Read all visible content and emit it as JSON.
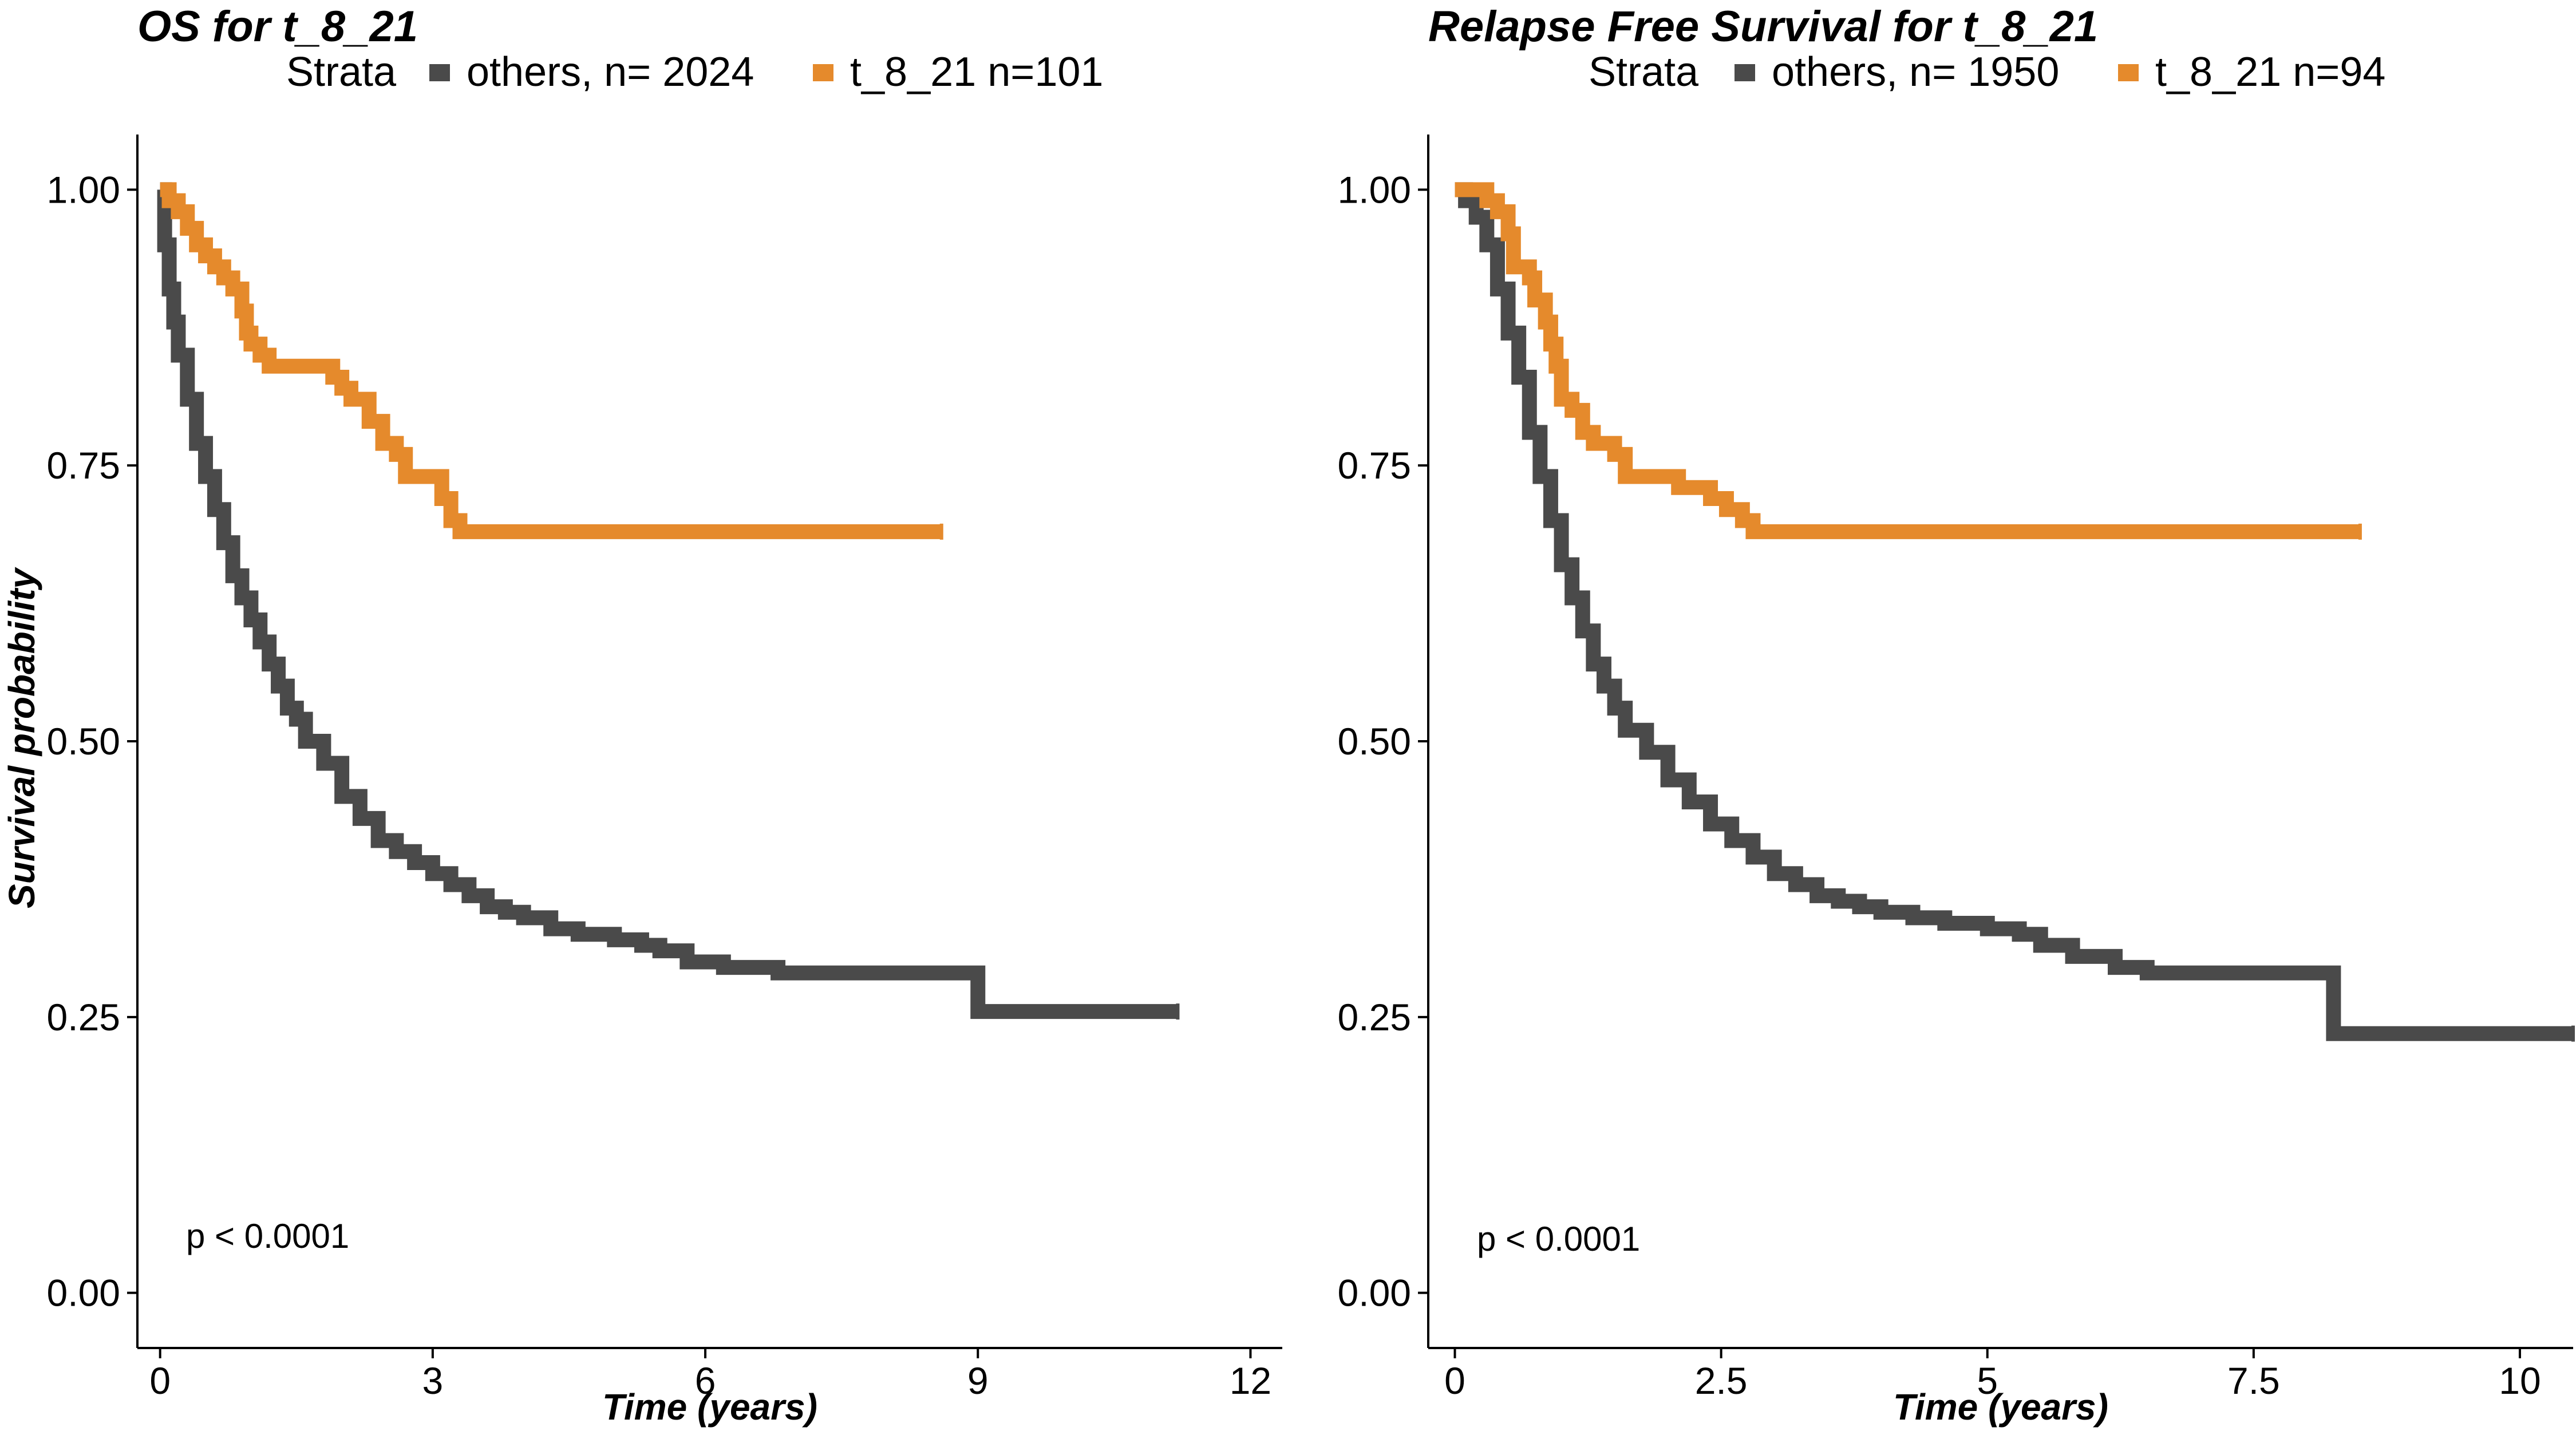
{
  "colors": {
    "others": "#4a4a4a",
    "t_8_21": "#e58a2c"
  },
  "chart_data": [
    {
      "type": "line",
      "title": "OS  for  t_8_21",
      "legend_title": "Strata",
      "legend_position": "top",
      "xlabel": "Time (years)",
      "ylabel": "Survival probability",
      "xlim": [
        0,
        12
      ],
      "ylim": [
        0,
        1
      ],
      "x_ticks": [
        "0",
        "3",
        "6",
        "9",
        "12"
      ],
      "x_tick_values": [
        0,
        3,
        6,
        9,
        12
      ],
      "y_ticks": [
        "0.00",
        "0.25",
        "0.50",
        "0.75",
        "1.00"
      ],
      "y_tick_values": [
        0,
        0.25,
        0.5,
        0.75,
        1.0
      ],
      "annotation": "p < 0.0001",
      "grid": false,
      "series": [
        {
          "name": "others, n= 2024",
          "color_key": "others",
          "points": [
            [
              0,
              1.0
            ],
            [
              0.05,
              0.95
            ],
            [
              0.1,
              0.91
            ],
            [
              0.15,
              0.88
            ],
            [
              0.2,
              0.85
            ],
            [
              0.3,
              0.81
            ],
            [
              0.4,
              0.77
            ],
            [
              0.5,
              0.74
            ],
            [
              0.6,
              0.71
            ],
            [
              0.7,
              0.68
            ],
            [
              0.8,
              0.65
            ],
            [
              0.9,
              0.63
            ],
            [
              1.0,
              0.61
            ],
            [
              1.1,
              0.59
            ],
            [
              1.2,
              0.57
            ],
            [
              1.3,
              0.55
            ],
            [
              1.4,
              0.53
            ],
            [
              1.5,
              0.52
            ],
            [
              1.6,
              0.5
            ],
            [
              1.8,
              0.48
            ],
            [
              2.0,
              0.45
            ],
            [
              2.2,
              0.43
            ],
            [
              2.4,
              0.41
            ],
            [
              2.6,
              0.4
            ],
            [
              2.8,
              0.39
            ],
            [
              3.0,
              0.38
            ],
            [
              3.2,
              0.37
            ],
            [
              3.4,
              0.36
            ],
            [
              3.6,
              0.35
            ],
            [
              3.8,
              0.345
            ],
            [
              4.0,
              0.34
            ],
            [
              4.3,
              0.33
            ],
            [
              4.6,
              0.325
            ],
            [
              5.0,
              0.32
            ],
            [
              5.3,
              0.315
            ],
            [
              5.5,
              0.31
            ],
            [
              5.8,
              0.3
            ],
            [
              6.2,
              0.295
            ],
            [
              6.8,
              0.29
            ],
            [
              7.5,
              0.29
            ],
            [
              8.99,
              0.29
            ],
            [
              9.0,
              0.255
            ],
            [
              11.2,
              0.255
            ]
          ]
        },
        {
          "name": "t_8_21 n=101",
          "color_key": "t_8_21",
          "points": [
            [
              0,
              1.0
            ],
            [
              0.1,
              0.99
            ],
            [
              0.2,
              0.98
            ],
            [
              0.3,
              0.965
            ],
            [
              0.4,
              0.95
            ],
            [
              0.5,
              0.94
            ],
            [
              0.6,
              0.93
            ],
            [
              0.7,
              0.92
            ],
            [
              0.8,
              0.91
            ],
            [
              0.9,
              0.89
            ],
            [
              0.95,
              0.87
            ],
            [
              1.0,
              0.86
            ],
            [
              1.1,
              0.85
            ],
            [
              1.2,
              0.84
            ],
            [
              1.8,
              0.84
            ],
            [
              1.9,
              0.83
            ],
            [
              2.0,
              0.82
            ],
            [
              2.1,
              0.81
            ],
            [
              2.3,
              0.79
            ],
            [
              2.45,
              0.77
            ],
            [
              2.6,
              0.76
            ],
            [
              2.7,
              0.74
            ],
            [
              3.0,
              0.74
            ],
            [
              3.1,
              0.72
            ],
            [
              3.2,
              0.7
            ],
            [
              3.3,
              0.69
            ],
            [
              8.6,
              0.69
            ]
          ]
        }
      ]
    },
    {
      "type": "line",
      "title": "Relapse Free Survival for  t_8_21",
      "legend_title": "Strata",
      "legend_position": "top",
      "xlabel": "Time (years)",
      "ylabel": "",
      "xlim": [
        0,
        10.5
      ],
      "ylim": [
        0,
        1
      ],
      "x_ticks": [
        "0",
        "2.5",
        "5",
        "7.5",
        "10"
      ],
      "x_tick_values": [
        0,
        2.5,
        5,
        7.5,
        10
      ],
      "y_ticks": [
        "0.00",
        "0.25",
        "0.50",
        "0.75",
        "1.00"
      ],
      "y_tick_values": [
        0,
        0.25,
        0.5,
        0.75,
        1.0
      ],
      "annotation": "p < 0.0001",
      "grid": false,
      "series": [
        {
          "name": "others, n= 1950",
          "color_key": "others",
          "points": [
            [
              0,
              1.0
            ],
            [
              0.1,
              0.99
            ],
            [
              0.2,
              0.975
            ],
            [
              0.3,
              0.95
            ],
            [
              0.4,
              0.91
            ],
            [
              0.5,
              0.87
            ],
            [
              0.6,
              0.83
            ],
            [
              0.7,
              0.78
            ],
            [
              0.8,
              0.74
            ],
            [
              0.9,
              0.7
            ],
            [
              1.0,
              0.66
            ],
            [
              1.1,
              0.63
            ],
            [
              1.2,
              0.6
            ],
            [
              1.3,
              0.57
            ],
            [
              1.4,
              0.55
            ],
            [
              1.5,
              0.53
            ],
            [
              1.6,
              0.51
            ],
            [
              1.8,
              0.49
            ],
            [
              2.0,
              0.465
            ],
            [
              2.2,
              0.445
            ],
            [
              2.4,
              0.425
            ],
            [
              2.6,
              0.41
            ],
            [
              2.8,
              0.395
            ],
            [
              3.0,
              0.38
            ],
            [
              3.2,
              0.37
            ],
            [
              3.4,
              0.36
            ],
            [
              3.6,
              0.355
            ],
            [
              3.8,
              0.35
            ],
            [
              4.0,
              0.345
            ],
            [
              4.3,
              0.34
            ],
            [
              4.6,
              0.335
            ],
            [
              5.0,
              0.33
            ],
            [
              5.3,
              0.325
            ],
            [
              5.5,
              0.315
            ],
            [
              5.8,
              0.305
            ],
            [
              6.2,
              0.295
            ],
            [
              6.5,
              0.29
            ],
            [
              7.0,
              0.29
            ],
            [
              8.2,
              0.29
            ],
            [
              8.25,
              0.235
            ],
            [
              10.5,
              0.235
            ]
          ]
        },
        {
          "name": "t_8_21 n=94",
          "color_key": "t_8_21",
          "points": [
            [
              0,
              1.0
            ],
            [
              0.25,
              1.0
            ],
            [
              0.3,
              0.99
            ],
            [
              0.4,
              0.98
            ],
            [
              0.5,
              0.96
            ],
            [
              0.55,
              0.93
            ],
            [
              0.7,
              0.92
            ],
            [
              0.75,
              0.9
            ],
            [
              0.85,
              0.88
            ],
            [
              0.9,
              0.86
            ],
            [
              0.95,
              0.84
            ],
            [
              1.0,
              0.81
            ],
            [
              1.1,
              0.8
            ],
            [
              1.2,
              0.78
            ],
            [
              1.3,
              0.77
            ],
            [
              1.5,
              0.76
            ],
            [
              1.6,
              0.74
            ],
            [
              2.0,
              0.74
            ],
            [
              2.1,
              0.73
            ],
            [
              2.4,
              0.72
            ],
            [
              2.55,
              0.71
            ],
            [
              2.7,
              0.7
            ],
            [
              2.8,
              0.69
            ],
            [
              8.5,
              0.69
            ]
          ]
        }
      ]
    }
  ]
}
